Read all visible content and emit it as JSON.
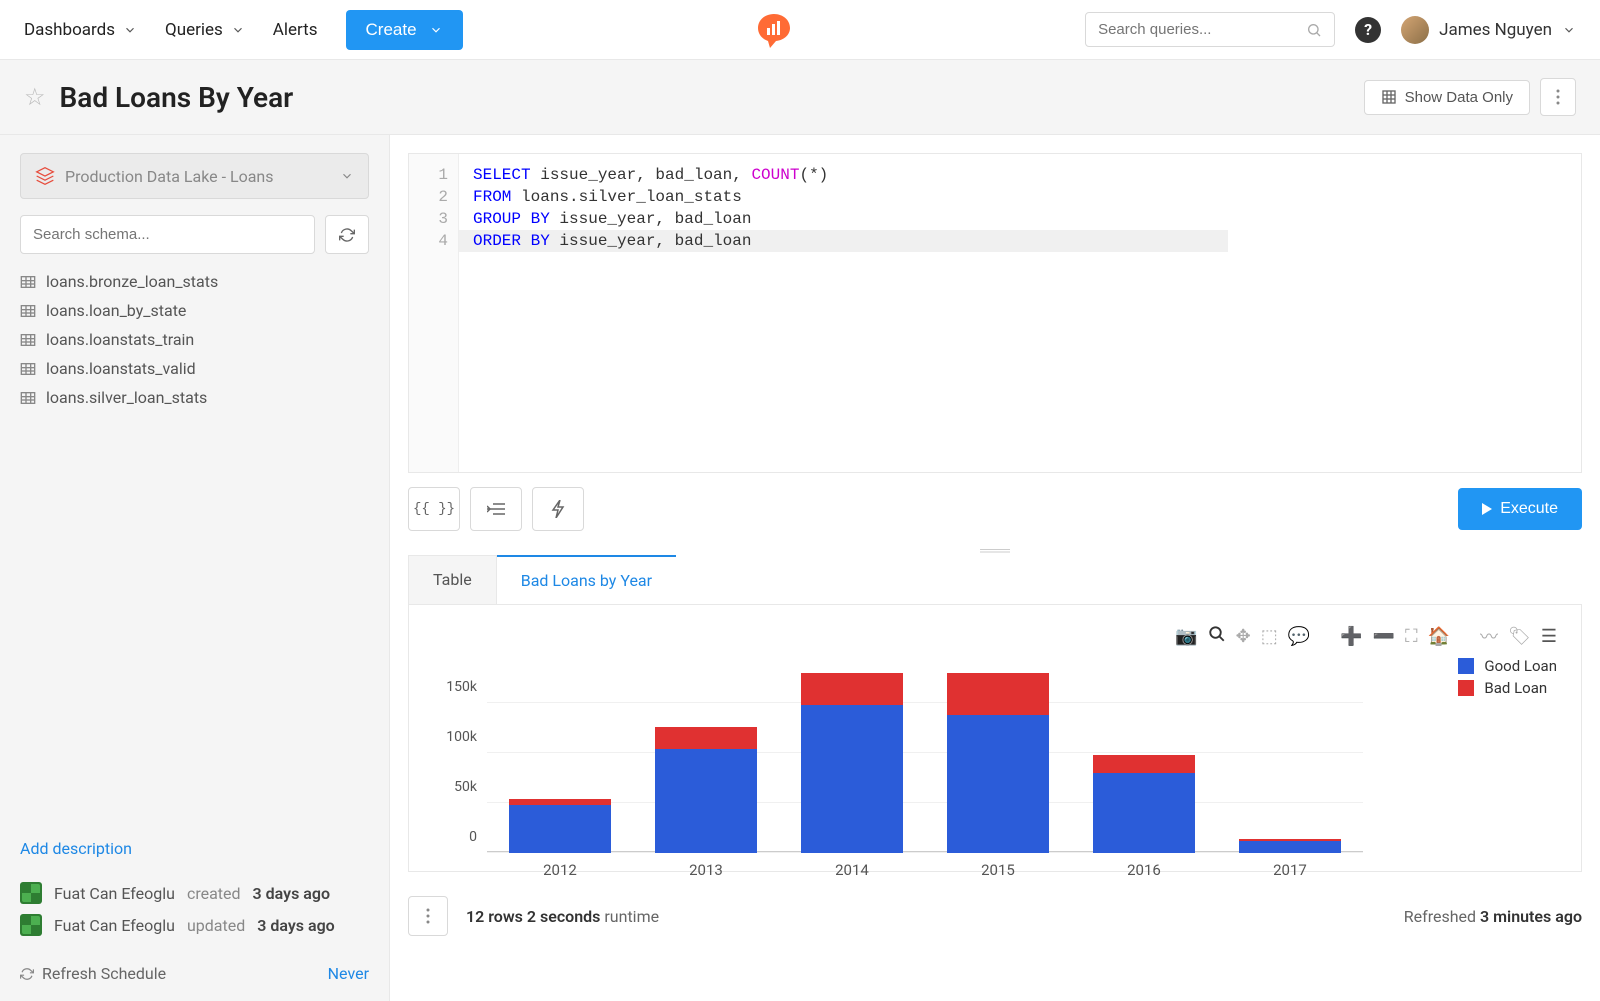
{
  "nav": {
    "dashboards": "Dashboards",
    "queries": "Queries",
    "alerts": "Alerts",
    "create": "Create",
    "search_placeholder": "Search queries...",
    "user_name": "James Nguyen"
  },
  "header": {
    "title": "Bad Loans By Year",
    "show_data": "Show Data Only"
  },
  "sidebar": {
    "datasource": "Production Data Lake - Loans",
    "schema_search_placeholder": "Search schema...",
    "tables": [
      "loans.bronze_loan_stats",
      "loans.loan_by_state",
      "loans.loanstats_train",
      "loans.loanstats_valid",
      "loans.silver_loan_stats"
    ],
    "add_description": "Add description",
    "meta": {
      "author": "Fuat Can Efeoglu",
      "created_label": "created",
      "created_time": "3 days ago",
      "updated_label": "updated",
      "updated_time": "3 days ago"
    },
    "refresh_schedule_label": "Refresh Schedule",
    "refresh_schedule_value": "Never"
  },
  "editor": {
    "lines": [
      {
        "n": 1,
        "tokens": [
          {
            "t": "SELECT",
            "c": "kw"
          },
          {
            "t": " issue_year, bad_loan, "
          },
          {
            "t": "COUNT",
            "c": "fn"
          },
          {
            "t": "(*)"
          }
        ]
      },
      {
        "n": 2,
        "tokens": [
          {
            "t": "FROM",
            "c": "kw"
          },
          {
            "t": " loans.silver_loan_stats"
          }
        ]
      },
      {
        "n": 3,
        "tokens": [
          {
            "t": "GROUP BY",
            "c": "kw"
          },
          {
            "t": " issue_year, bad_loan"
          }
        ]
      },
      {
        "n": 4,
        "tokens": [
          {
            "t": "ORDER BY",
            "c": "kw"
          },
          {
            "t": " issue_year, bad_loan"
          }
        ],
        "active": true
      }
    ],
    "params_btn": "{{ }}",
    "execute": "Execute"
  },
  "tabs": {
    "table": "Table",
    "chart": "Bad Loans by Year"
  },
  "chart": {
    "type": "stacked_bar",
    "categories": [
      "2012",
      "2013",
      "2014",
      "2015",
      "2016",
      "2017"
    ],
    "series": [
      {
        "name": "Good Loan",
        "color": "#2b5cd9",
        "values": [
          48,
          104,
          148,
          138,
          80,
          12
        ]
      },
      {
        "name": "Bad Loan",
        "color": "#e03131",
        "values": [
          6,
          22,
          32,
          42,
          18,
          2
        ]
      }
    ],
    "y_ticks": [
      0,
      50,
      100,
      150
    ],
    "y_tick_labels": [
      "0",
      "50k",
      "100k",
      "150k"
    ],
    "y_max": 190,
    "background": "#ffffff",
    "grid_color": "#f0f0f0",
    "axis_color": "#cccccc",
    "label_fontsize": 15,
    "bar_width_pct": 70
  },
  "footer": {
    "rows": "12 rows",
    "runtime_value": "2 seconds",
    "runtime_label": "runtime",
    "refreshed_label": "Refreshed",
    "refreshed_time": "3 minutes ago"
  },
  "colors": {
    "primary": "#2196f3",
    "link": "#1e88e5",
    "logo": "#ff6b35"
  }
}
